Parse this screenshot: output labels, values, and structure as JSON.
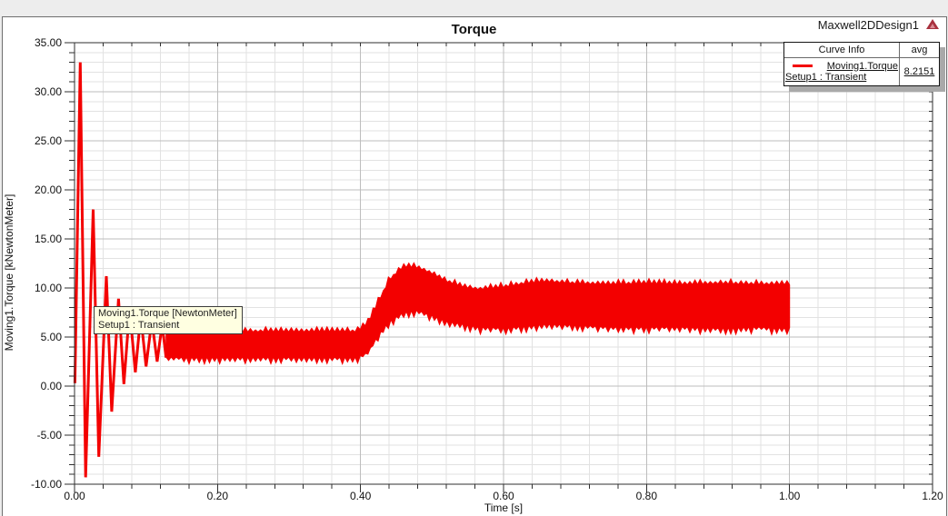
{
  "header": {
    "title": "Torque",
    "design_name": "Maxwell2DDesign1"
  },
  "legend": {
    "curve_info_label": "Curve Info",
    "avg_label": "avg",
    "entries": [
      {
        "curve": "Moving1.Torque",
        "setup": "Setup1 : Transient",
        "avg": "8.2151"
      }
    ]
  },
  "tooltip": {
    "line1": "Moving1.Torque [NewtonMeter]",
    "line2": "Setup1 : Transient"
  },
  "colors": {
    "curve": "#f30000",
    "grid_minor": "#e2e2e2",
    "grid_major": "#bdbdbd",
    "axis": "#2f2f2f",
    "tooltip_bg": "#ffffe1",
    "legend_shadow": "#a9a9a9",
    "logo_red": "#a8313e"
  },
  "chart_data": {
    "type": "line",
    "title": "Torque",
    "xlabel": "Time [s]",
    "ylabel": "Moving1.Torque [kNewtonMeter]",
    "xlim": [
      0,
      1.2
    ],
    "ylim": [
      -10,
      35
    ],
    "x_major": 0.2,
    "x_minor": 0.04,
    "y_major": 5,
    "y_minor": 1,
    "grid": true,
    "legend_position": "top-right",
    "series": [
      {
        "name": "Moving1.Torque",
        "setup": "Setup1 : Transient",
        "avg": 8.2151,
        "transient_extrema": [
          [
            0.0005,
            0.3
          ],
          [
            0.008,
            33.0
          ],
          [
            0.0155,
            -9.3
          ],
          [
            0.026,
            18.0
          ],
          [
            0.034,
            -7.2
          ],
          [
            0.0445,
            11.2
          ],
          [
            0.052,
            -2.6
          ],
          [
            0.0615,
            8.9
          ],
          [
            0.069,
            0.2
          ],
          [
            0.077,
            7.9
          ],
          [
            0.085,
            1.4
          ],
          [
            0.0925,
            7.2
          ],
          [
            0.1,
            2.0
          ],
          [
            0.108,
            6.7
          ],
          [
            0.1155,
            2.5
          ],
          [
            0.1225,
            6.3
          ],
          [
            0.128,
            2.9
          ]
        ],
        "ripple_band_envelope": {
          "t": [
            0.128,
            0.2,
            0.3,
            0.395,
            0.41,
            0.425,
            0.44,
            0.455,
            0.465,
            0.48,
            0.5,
            0.52,
            0.545,
            0.565,
            0.6,
            0.63,
            0.66,
            0.7,
            0.75,
            0.8,
            0.85,
            0.9,
            0.95,
            1.0
          ],
          "top": [
            5.7,
            5.6,
            5.6,
            5.6,
            6.4,
            8.6,
            10.8,
            11.9,
            12.2,
            12.1,
            11.5,
            10.7,
            10.1,
            9.9,
            10.1,
            10.5,
            10.7,
            10.5,
            10.4,
            10.5,
            10.4,
            10.5,
            10.4,
            10.4
          ],
          "bottom": [
            2.9,
            2.9,
            2.9,
            2.9,
            3.4,
            5.2,
            6.6,
            7.3,
            7.6,
            7.7,
            7.2,
            6.6,
            6.3,
            6.0,
            5.9,
            6.1,
            6.3,
            6.2,
            6.0,
            6.0,
            6.0,
            5.9,
            6.0,
            5.9
          ]
        }
      }
    ]
  }
}
